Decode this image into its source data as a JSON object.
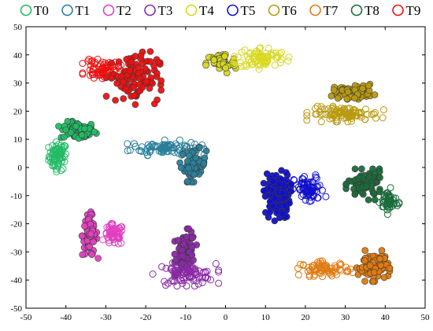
{
  "chart_data": {
    "type": "scatter",
    "title": "",
    "xlabel": "",
    "ylabel": "",
    "xlim": [
      -50,
      50
    ],
    "ylim": [
      -50,
      50
    ],
    "x_ticks": [
      -50,
      -40,
      -30,
      -20,
      -10,
      0,
      10,
      20,
      30,
      40,
      50
    ],
    "y_ticks": [
      -50,
      -40,
      -30,
      -20,
      -10,
      0,
      10,
      20,
      30,
      40,
      50
    ],
    "grid": false,
    "legend_position": "top",
    "series": [
      {
        "name": "T0",
        "color": "#22bb66",
        "marker": "circle",
        "clusters": [
          {
            "label": "hollow",
            "filled": false,
            "n": 70,
            "center": [
              -42,
              4
            ],
            "spread": [
              1.8,
              4.0
            ]
          },
          {
            "label": "solid",
            "filled": true,
            "n": 70,
            "center": [
              -37,
              13
            ],
            "spread": [
              3.5,
              2.5
            ]
          }
        ]
      },
      {
        "name": "T1",
        "color": "#2a7f9a",
        "marker": "circle",
        "clusters": [
          {
            "label": "hollow",
            "filled": false,
            "n": 90,
            "center": [
              -15,
              7
            ],
            "spread": [
              7.0,
              2.0
            ]
          },
          {
            "label": "solid",
            "filled": true,
            "n": 60,
            "center": [
              -8,
              1
            ],
            "spread": [
              2.5,
              4.5
            ]
          }
        ]
      },
      {
        "name": "T2",
        "color": "#e040c0",
        "marker": "circle",
        "clusters": [
          {
            "label": "solid",
            "filled": true,
            "n": 70,
            "center": [
              -34,
              -24
            ],
            "spread": [
              1.5,
              6.0
            ]
          },
          {
            "label": "hollow",
            "filled": false,
            "n": 60,
            "center": [
              -28,
              -24
            ],
            "spread": [
              2.0,
              3.0
            ]
          }
        ]
      },
      {
        "name": "T3",
        "color": "#8a2aa5",
        "marker": "circle",
        "clusters": [
          {
            "label": "solid",
            "filled": true,
            "n": 80,
            "center": [
              -10,
              -30
            ],
            "spread": [
              2.0,
              6.0
            ]
          },
          {
            "label": "hollow",
            "filled": false,
            "n": 80,
            "center": [
              -10,
              -38
            ],
            "spread": [
              6.0,
              3.0
            ]
          }
        ]
      },
      {
        "name": "T4",
        "color": "#d8d820",
        "marker": "circle",
        "clusters": [
          {
            "label": "solid",
            "filled": true,
            "n": 50,
            "center": [
              -1,
              37
            ],
            "spread": [
              3.0,
              3.0
            ]
          },
          {
            "label": "hollow",
            "filled": false,
            "n": 80,
            "center": [
              9,
              39
            ],
            "spread": [
              5.0,
              3.0
            ]
          }
        ]
      },
      {
        "name": "T5",
        "color": "#1010cc",
        "marker": "circle",
        "clusters": [
          {
            "label": "solid",
            "filled": true,
            "n": 130,
            "center": [
              13,
              -10
            ],
            "spread": [
              2.5,
              6.5
            ]
          },
          {
            "label": "hollow",
            "filled": false,
            "n": 70,
            "center": [
              21,
              -8
            ],
            "spread": [
              3.0,
              4.0
            ]
          }
        ]
      },
      {
        "name": "T6",
        "color": "#b89a10",
        "marker": "circle",
        "clusters": [
          {
            "label": "solid",
            "filled": true,
            "n": 60,
            "center": [
              32,
              27
            ],
            "spread": [
              4.0,
              2.0
            ]
          },
          {
            "label": "hollow",
            "filled": false,
            "n": 100,
            "center": [
              30,
              19
            ],
            "spread": [
              7.0,
              2.0
            ]
          }
        ]
      },
      {
        "name": "T7",
        "color": "#e07a10",
        "marker": "circle",
        "clusters": [
          {
            "label": "hollow",
            "filled": false,
            "n": 70,
            "center": [
              25,
              -36
            ],
            "spread": [
              5.0,
              2.0
            ]
          },
          {
            "label": "solid",
            "filled": true,
            "n": 90,
            "center": [
              37,
              -35
            ],
            "spread": [
              3.0,
              4.0
            ]
          }
        ]
      },
      {
        "name": "T8",
        "color": "#1a6b3a",
        "marker": "circle",
        "clusters": [
          {
            "label": "solid",
            "filled": true,
            "n": 80,
            "center": [
              35,
              -6
            ],
            "spread": [
              3.5,
              4.0
            ]
          },
          {
            "label": "hollow",
            "filled": false,
            "n": 50,
            "center": [
              41,
              -12
            ],
            "spread": [
              1.8,
              3.5
            ]
          }
        ]
      },
      {
        "name": "T9",
        "color": "#ee1010",
        "marker": "circle",
        "clusters": [
          {
            "label": "hollow",
            "filled": false,
            "n": 70,
            "center": [
              -31,
              35
            ],
            "spread": [
              3.5,
              2.5
            ]
          },
          {
            "label": "solid",
            "filled": true,
            "n": 110,
            "center": [
              -23,
              32
            ],
            "spread": [
              5.0,
              7.0
            ]
          }
        ]
      }
    ]
  }
}
